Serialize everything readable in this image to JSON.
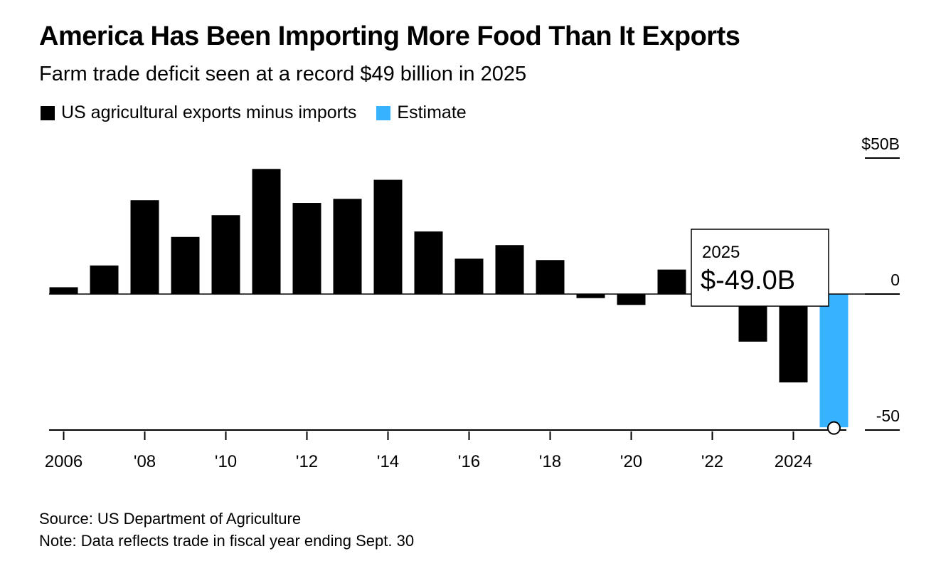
{
  "header": {
    "title": "America Has Been Importing More Food Than It Exports",
    "subtitle": "Farm trade deficit seen at a record $49 billion in 2025"
  },
  "legend": [
    {
      "label": "US agricultural exports minus imports",
      "color": "#000000"
    },
    {
      "label": "Estimate",
      "color": "#36b2ff"
    }
  ],
  "tooltip": {
    "year": "2025",
    "value": "$-49.0B"
  },
  "footer": {
    "source": "Source: US Department of Agriculture",
    "note": "Note: Data reflects trade in fiscal year ending Sept. 30"
  },
  "chart_data": {
    "type": "bar",
    "categories": [
      2006,
      2007,
      2008,
      2009,
      2010,
      2011,
      2012,
      2013,
      2014,
      2015,
      2016,
      2017,
      2018,
      2019,
      2020,
      2021,
      2022,
      2023,
      2024,
      2025
    ],
    "values": [
      2.5,
      10.5,
      34.5,
      21,
      29,
      46,
      33.5,
      35,
      42,
      23,
      13,
      18,
      12.5,
      -1.5,
      -4,
      9,
      0,
      -17.5,
      -32.5,
      -49
    ],
    "estimate_categories": [
      2025
    ],
    "colors": {
      "actual": "#000000",
      "estimate": "#36b2ff"
    },
    "ylim": [
      -50,
      50
    ],
    "y_ticks": [
      {
        "value": 50,
        "label": "$50B"
      },
      {
        "value": 0,
        "label": "0"
      },
      {
        "value": -50,
        "label": "-50"
      }
    ],
    "x_ticks": [
      {
        "value": 2006,
        "label": "2006"
      },
      {
        "value": 2008,
        "label": "'08"
      },
      {
        "value": 2010,
        "label": "'10"
      },
      {
        "value": 2012,
        "label": "'12"
      },
      {
        "value": 2014,
        "label": "'14"
      },
      {
        "value": 2016,
        "label": "'16"
      },
      {
        "value": 2018,
        "label": "'18"
      },
      {
        "value": 2020,
        "label": "'20"
      },
      {
        "value": 2022,
        "label": "'22"
      },
      {
        "value": 2024,
        "label": "2024"
      }
    ],
    "xlabel": "",
    "ylabel": "",
    "highlight": {
      "category": 2025,
      "value": -49
    }
  }
}
